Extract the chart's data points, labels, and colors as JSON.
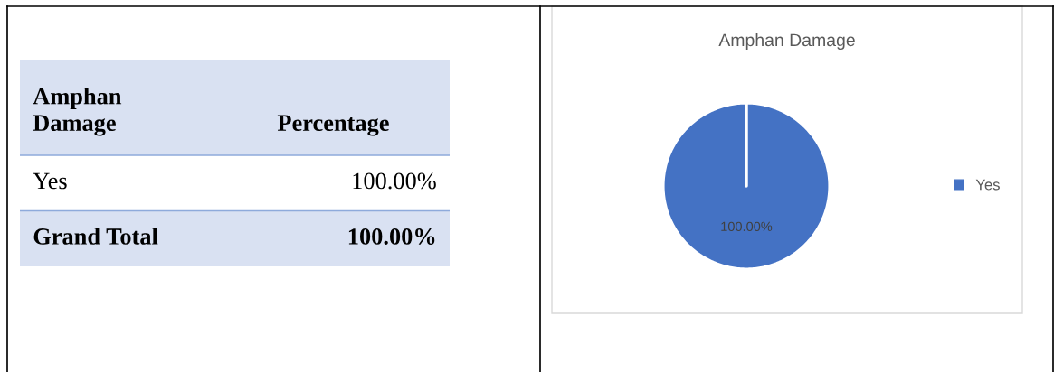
{
  "chart_data": [
    {
      "type": "other",
      "annotations": [
        "Amphan\nDamage",
        "Percentage",
        "Yes",
        "100.00%",
        "Grand Total",
        "100.00%"
      ]
    },
    {
      "type": "pie",
      "title": "Amphan Damage",
      "categories": [
        "Yes"
      ],
      "values": [
        100
      ],
      "colors": [
        "#4472c4"
      ],
      "value_labels": [
        "100.00%"
      ],
      "legend": "right"
    }
  ]
}
